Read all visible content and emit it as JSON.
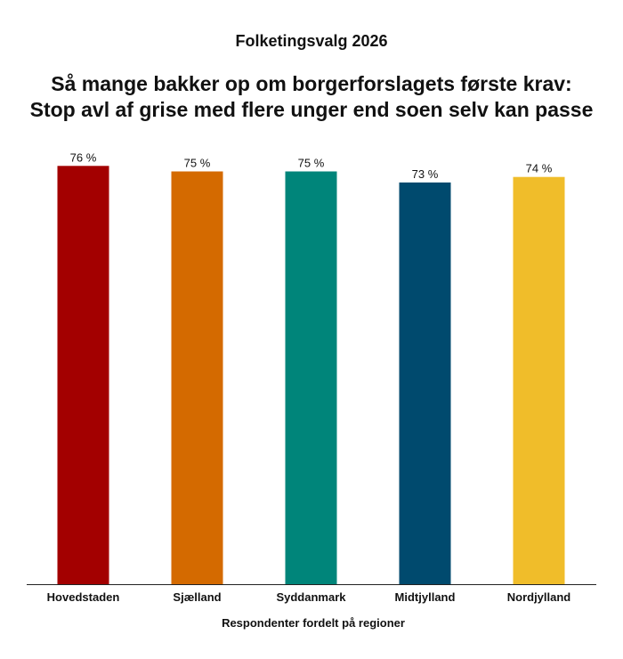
{
  "chart_data": {
    "type": "bar",
    "supertitle": "Folketingsvalg 2026",
    "title_lines": [
      "Så mange bakker op om borgerforslagets første krav:",
      "Stop avl af grise med flere unger end soen selv kan passe"
    ],
    "xlabel": "Respondenter fordelt på regioner",
    "ylabel": "",
    "categories": [
      "Hovedstaden",
      "Sjælland",
      "Syddanmark",
      "Midtjylland",
      "Nordjylland"
    ],
    "values": [
      76,
      75,
      75,
      73,
      74
    ],
    "value_labels": [
      "76 %",
      "75 %",
      "75 %",
      "73 %",
      "74 %"
    ],
    "colors": [
      "#a30000",
      "#d46a00",
      "#00857a",
      "#004a6e",
      "#f0bd2a"
    ],
    "ylim": [
      0,
      100
    ],
    "grid": false,
    "legend": "none"
  }
}
